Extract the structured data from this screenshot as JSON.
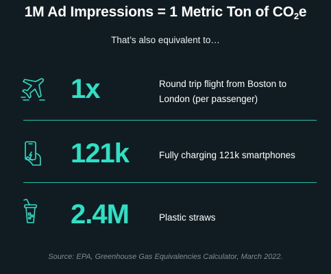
{
  "header": {
    "title_prefix": "1M Ad Impressions = 1 Metric Ton of CO",
    "title_subscript": "2",
    "title_suffix": "e",
    "subtitle": "That’s also equivalent to…"
  },
  "equivalents": [
    {
      "icon": "airplane-icon",
      "value": "1x",
      "description": "Round trip flight from Boston to London (per passenger)"
    },
    {
      "icon": "smartphone-icon",
      "value": "121k",
      "description": "Fully charging 121k smartphones"
    },
    {
      "icon": "cup-with-straw-icon",
      "value": "2.4M",
      "description": "Plastic straws"
    }
  ],
  "source": "Source: EPA, Greenhouse Gas Equivalencies Calculator, March 2022.",
  "colors": {
    "background": "#101c22",
    "accent": "#2ee0c4",
    "text": "#ffffff",
    "muted": "#7f8c91"
  }
}
